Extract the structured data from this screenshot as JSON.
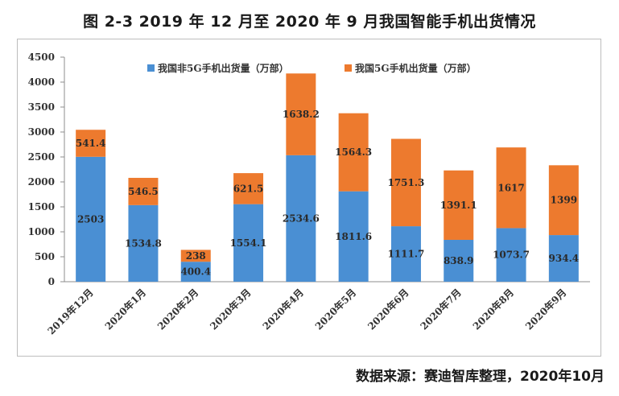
{
  "title": "图 2-3 2019 年 12 月至 2020 年 9 月我国智能手机出货情况",
  "source": "数据来源：赛迪智库整理，2020年10月",
  "chart_data": {
    "type": "bar",
    "stacked": true,
    "categories": [
      "2019年12月",
      "2020年1月",
      "2020年2月",
      "2020年3月",
      "2020年4月",
      "2020年5月",
      "2020年6月",
      "2020年7月",
      "2020年8月",
      "2020年9月"
    ],
    "series": [
      {
        "name": "我国非5G手机出货量（万部）",
        "color": "#4a8fd3",
        "values": [
          2503,
          1534.8,
          400.4,
          1554.1,
          2534.6,
          1811.6,
          1111.7,
          838.9,
          1073.7,
          934.4
        ],
        "labels": [
          "2503",
          "1534.8",
          "400.4",
          "1554.1",
          "2534.6",
          "1811.6",
          "1111.7",
          "838.9",
          "1073.7",
          "934.4"
        ]
      },
      {
        "name": "我国5G手机出货量（万部）",
        "color": "#ed7a2e",
        "values": [
          541.4,
          546.5,
          238,
          621.5,
          1638.2,
          1564.3,
          1751.3,
          1391.1,
          1617,
          1399
        ],
        "labels": [
          "541.4",
          "546.5",
          "238",
          "621.5",
          "1638.2",
          "1564.3",
          "1751.3",
          "1391.1",
          "1617",
          "1399"
        ]
      }
    ],
    "ylim": [
      0,
      4500
    ],
    "yticks": [
      0,
      500,
      1000,
      1500,
      2000,
      2500,
      3000,
      3500,
      4000,
      4500
    ],
    "ytick_labels": [
      "0",
      "500",
      "1000",
      "1500",
      "2000",
      "2500",
      "3000",
      "3500",
      "4000",
      "4500"
    ],
    "grid": false,
    "legend": "top"
  }
}
